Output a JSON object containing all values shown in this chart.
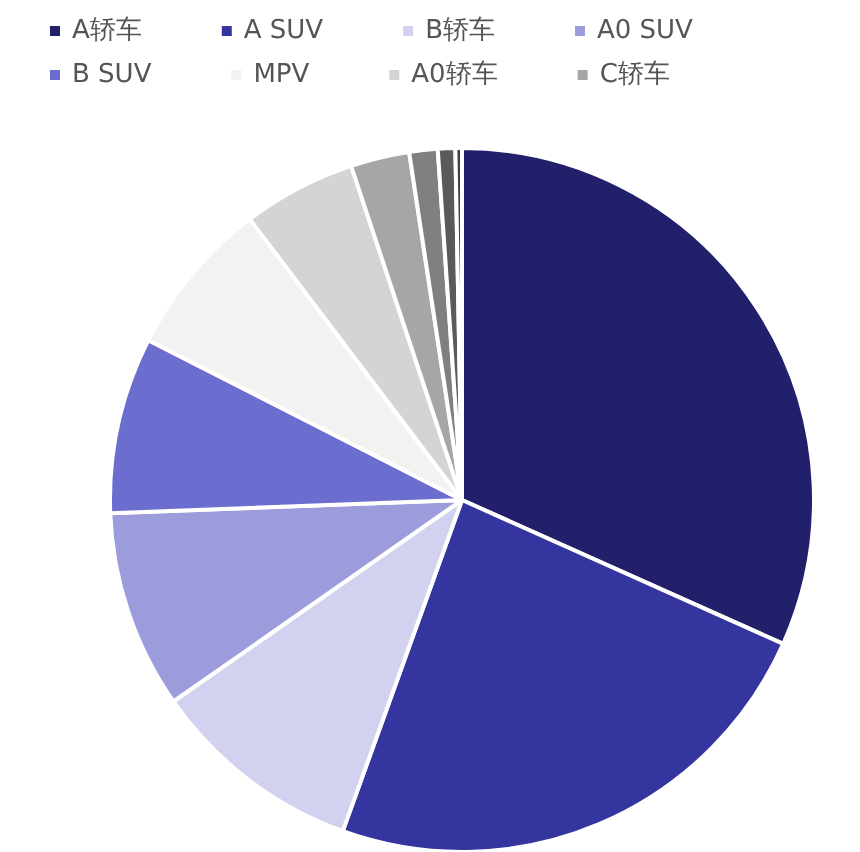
{
  "chart_data": {
    "type": "pie",
    "categories": [
      "A轿车",
      "A SUV",
      "B轿车",
      "A0 SUV",
      "B SUV",
      "MPV",
      "A0轿车",
      "C轿车",
      null,
      null,
      null
    ],
    "values": [
      31.7,
      23.8,
      9.8,
      9.1,
      8.1,
      7.2,
      5.2,
      2.7,
      1.3,
      0.8,
      0.3
    ],
    "colors": [
      "#221f6b",
      "#3535a0",
      "#d2d2f0",
      "#9c9cdc",
      "#6c6ecf",
      "#f2f2f0",
      "#d4d4d4",
      "#a6a6a6",
      "#808080",
      "#5a5a5a",
      "#3f3f3f"
    ],
    "legend": "top"
  }
}
